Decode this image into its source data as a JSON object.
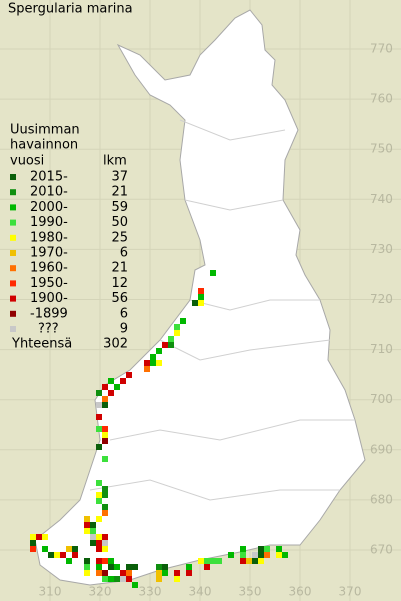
{
  "title": "Spergularia marina",
  "legend": {
    "heading": [
      "Uusimman",
      "havainnon"
    ],
    "col_year": "vuosi",
    "col_count": "lkm",
    "rows": [
      {
        "label": "2015-",
        "count": 37,
        "color": "#0a5f0a"
      },
      {
        "label": "2010-",
        "count": 21,
        "color": "#0f8f0f"
      },
      {
        "label": "2000-",
        "count": 59,
        "color": "#00b800"
      },
      {
        "label": "1990-",
        "count": 50,
        "color": "#3ce03c"
      },
      {
        "label": "1980-",
        "count": 25,
        "color": "#ffff00"
      },
      {
        "label": "1970-",
        "count": 6,
        "color": "#f0c000"
      },
      {
        "label": "1960-",
        "count": 21,
        "color": "#ff7000"
      },
      {
        "label": "1950-",
        "count": 12,
        "color": "#ff2a00"
      },
      {
        "label": "1900-",
        "count": 56,
        "color": "#d00000"
      },
      {
        "label": "-1899",
        "count": 6,
        "color": "#900000"
      },
      {
        "label": "???",
        "count": 9,
        "color": "#c8c8c8"
      }
    ],
    "total_label": "Yhteensä",
    "total": 302
  },
  "axes": {
    "y_ticks": [
      770,
      760,
      750,
      740,
      730,
      720,
      710,
      700,
      690,
      680,
      670
    ],
    "x_ticks": [
      310,
      320,
      330,
      340,
      350,
      360,
      370
    ]
  }
}
